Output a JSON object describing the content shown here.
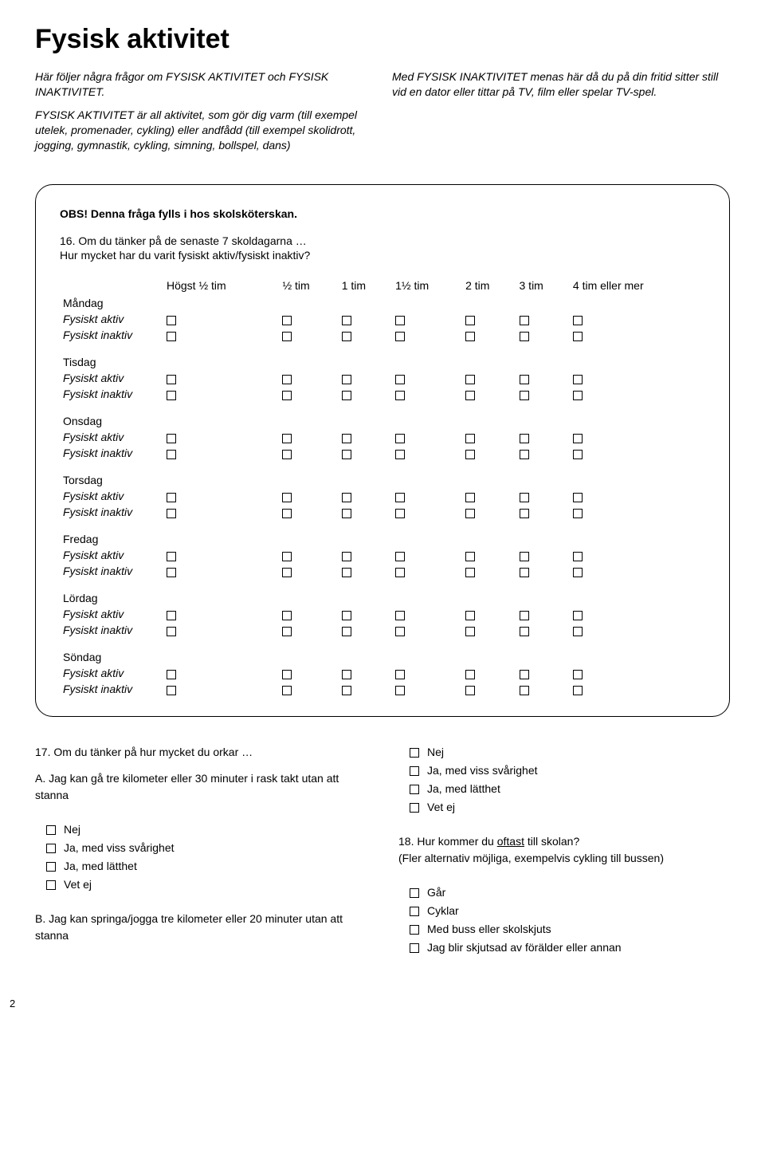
{
  "title": "Fysisk aktivitet",
  "intro_left_p1": "Här följer några frågor om FYSISK AKTIVITET och FYSISK INAKTIVITET.",
  "intro_left_p2": "FYSISK AKTIVITET är all aktivitet, som gör dig varm (till exempel utelek, promenader, cykling) eller andfådd (till exempel skolidrott, jogging, gymnastik, cykling, simning, bollspel, dans)",
  "intro_right_p1": "Med FYSISK INAKTIVITET menas här då du på din fritid sitter still vid en dator eller tittar på TV, film eller spelar TV-spel.",
  "box_note": "OBS! Denna fråga fylls i hos skolsköterskan.",
  "q16_lead": "16. Om du tänker på de senaste 7 skoldagarna …",
  "q16_sub": "Hur mycket har du varit fysiskt aktiv/fysiskt inaktiv?",
  "columns": [
    "Högst ½ tim",
    "½ tim",
    "1 tim",
    "1½ tim",
    "2 tim",
    "3 tim",
    "4 tim eller mer"
  ],
  "days": [
    "Måndag",
    "Tisdag",
    "Onsdag",
    "Torsdag",
    "Fredag",
    "Lördag",
    "Söndag"
  ],
  "sub_aktiv": "Fysiskt aktiv",
  "sub_inaktiv": "Fysiskt inaktiv",
  "q17_title": "17. Om du tänker på hur mycket du orkar …",
  "q17_a": "A. Jag kan gå tre kilometer eller 30 minuter i rask takt utan att stanna",
  "q17_b": "B. Jag kan springa/jogga tre kilometer eller 20 minuter utan att stanna",
  "opts_walk": [
    "Nej",
    "Ja, med viss svårighet",
    "Ja, med lätthet",
    "Vet ej"
  ],
  "q18_title_pre": "18. Hur kommer du ",
  "q18_title_underline": "oftast",
  "q18_title_post": " till skolan?",
  "q18_sub": "(Fler alternativ möjliga, exempelvis cykling till bussen)",
  "q18_opts": [
    "Går",
    "Cyklar",
    "Med buss eller skolskjuts",
    "Jag blir skjutsad av förälder eller annan"
  ],
  "page_number": "2",
  "colors": {
    "text": "#000000",
    "bg": "#ffffff",
    "border": "#000000"
  }
}
